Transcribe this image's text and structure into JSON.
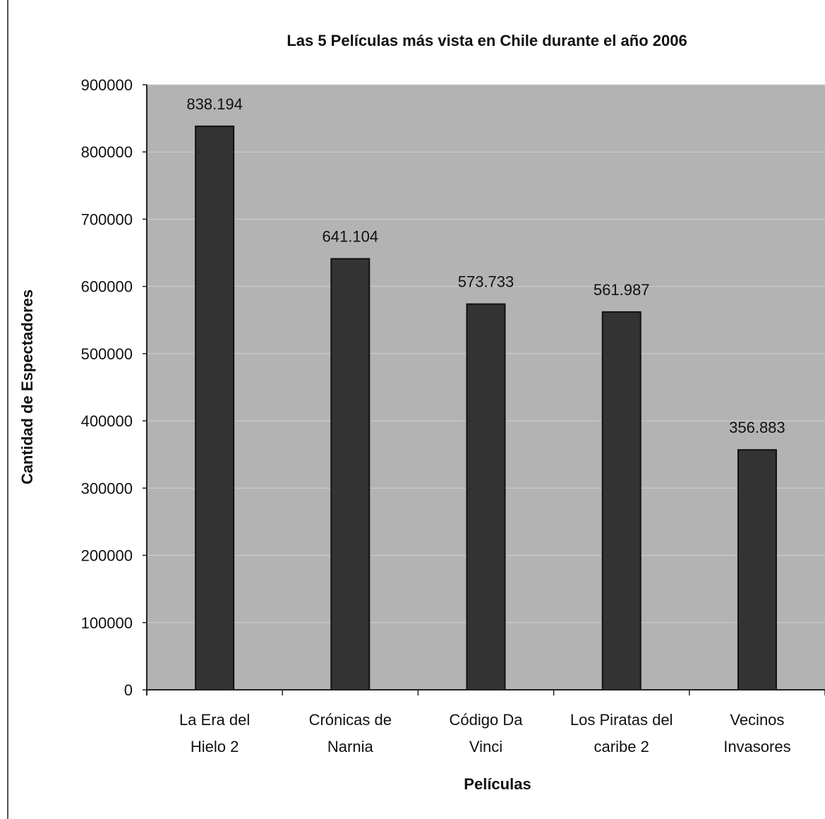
{
  "chart_data": {
    "type": "bar",
    "title": "Las 5 Películas más vista en Chile durante el año 2006",
    "xlabel": "Películas",
    "ylabel": "Cantidad de Espectadores",
    "categories": [
      [
        "La Era del",
        "Hielo 2"
      ],
      [
        "Crónicas de",
        "Narnia"
      ],
      [
        "Código Da",
        "Vinci"
      ],
      [
        "Los Piratas del",
        "caribe 2"
      ],
      [
        "Vecinos",
        "Invasores"
      ]
    ],
    "values": [
      838194,
      641104,
      573733,
      561987,
      356883
    ],
    "data_labels": [
      "838.194",
      "641.104",
      "573.733",
      "561.987",
      "356.883"
    ],
    "ylim": [
      0,
      900000
    ],
    "yticks": [
      0,
      100000,
      200000,
      300000,
      400000,
      500000,
      600000,
      700000,
      800000,
      900000
    ],
    "ytick_labels": [
      "0",
      "100000",
      "200000",
      "300000",
      "400000",
      "500000",
      "600000",
      "700000",
      "800000",
      "900000"
    ],
    "grid": true,
    "legend": "none",
    "colors": {
      "plot_background": "#b3b3b3",
      "bar": "#333333",
      "bar_edge": "#111111",
      "gridline": "#cfcfcf",
      "axis": "#222222",
      "text": "#111111"
    }
  }
}
